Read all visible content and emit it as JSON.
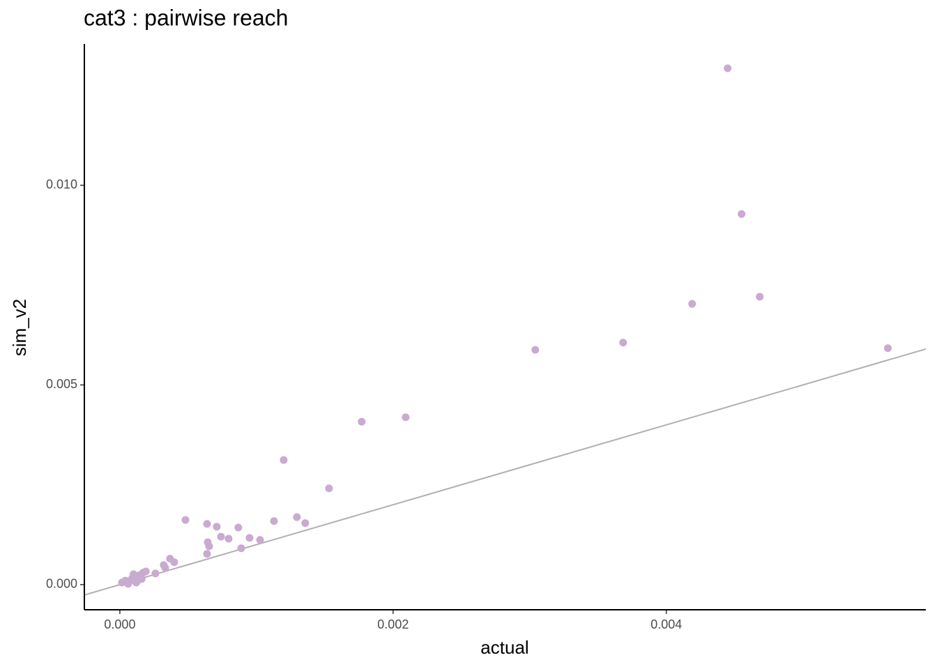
{
  "chart_data": {
    "type": "scatter",
    "title": "cat3 : pairwise reach",
    "x_label": "actual",
    "y_label": "sim_v2",
    "xlim": [
      -0.00026,
      0.0059
    ],
    "ylim": [
      -0.00063,
      0.01354
    ],
    "xticks": [
      {
        "value": 0,
        "label": "0.000"
      },
      {
        "value": 0.002,
        "label": "0.002"
      },
      {
        "value": 0.004,
        "label": "0.004"
      }
    ],
    "yticks": [
      {
        "value": 0,
        "label": "0.000"
      },
      {
        "value": 0.005,
        "label": "0.005"
      },
      {
        "value": 0.01,
        "label": "0.010"
      }
    ],
    "color": "#c9aad0",
    "identity_line": true,
    "identity_line_color": "#b0b0b0",
    "x": [
      0.004449,
      0.004551,
      0.004189,
      0.004684,
      0.003684,
      0.003041,
      0.005622,
      0.00177,
      0.002092,
      0.001199,
      0.001531,
      0.00048,
      0.000638,
      0.000709,
      0.000867,
      0.001128,
      0.001296,
      0.001357,
      0.00074,
      0.000796,
      0.000949,
      0.001026,
      0.000643,
      0.000653,
      0.000888,
      0.000638,
      0.000367,
      0.000398,
      0.000321,
      0.000332,
      0.00026,
      1.5e-05,
      4e-05,
      6e-05,
      9e-05,
      0.0001,
      0.00012,
      0.00014,
      0.00017,
      0.00019,
      0.00016,
      8e-05,
      0.00013
    ],
    "values": [
      0.01293,
      0.00928,
      0.00703,
      0.00721,
      0.00606,
      0.00588,
      0.00592,
      0.00408,
      0.00419,
      0.00312,
      0.00241,
      0.00162,
      0.00152,
      0.00145,
      0.00143,
      0.00159,
      0.00169,
      0.00154,
      0.0012,
      0.00115,
      0.00117,
      0.00112,
      0.00106,
      0.00096,
      0.00091,
      0.00077,
      0.00065,
      0.00056,
      0.00049,
      0.00042,
      0.00028,
      5e-05,
      0.0001,
      2e-05,
      0.00016,
      0.00026,
      5e-05,
      0.00023,
      0.0003,
      0.00033,
      0.00014,
      0.0001,
      0.0001
    ]
  }
}
